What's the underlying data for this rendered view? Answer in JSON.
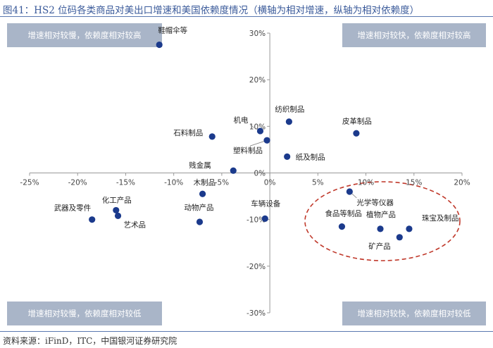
{
  "figure": {
    "title": "图41：HS2 位码各类商品对美出口增速和美国依赖度情况（横轴为相对增速，纵轴为相对依赖度）",
    "source": "资料来源：iFinD，ITC，中国银河证券研究院"
  },
  "colors": {
    "title_blue": "#3a5a9a",
    "point": "#1b3a8c",
    "quadrant_box": "#a9b5c8",
    "ellipse": "#c0392b",
    "axis": "#999999"
  },
  "chart_data": {
    "type": "scatter",
    "xlim": [
      -25,
      20
    ],
    "ylim": [
      -30,
      30
    ],
    "x_ticks": [
      "-25%",
      "-20%",
      "-15%",
      "-10%",
      "-5%",
      "0%",
      "5%",
      "10%",
      "15%",
      "20%"
    ],
    "y_ticks": [
      "30%",
      "20%",
      "10%",
      "0%",
      "-10%",
      "-20%",
      "-30%"
    ],
    "quadrant_labels": {
      "top_left": "增速相对较慢，依赖度相对较高",
      "top_right": "增速相对较快，依赖度相对较高",
      "bottom_left": "增速相对较慢，依赖度相对较低",
      "bottom_right": "增速相对较快，依赖度相对较低"
    },
    "points": [
      {
        "label": "鞋帽伞等",
        "x": -11.5,
        "y": 27.5
      },
      {
        "label": "纺织制品",
        "x": 2.0,
        "y": 11.0
      },
      {
        "label": "皮革制品",
        "x": 9.0,
        "y": 8.5
      },
      {
        "label": "机电",
        "x": -1.0,
        "y": 9.0
      },
      {
        "label": "石料制品",
        "x": -6.0,
        "y": 7.8
      },
      {
        "label": "塑料制品",
        "x": -0.3,
        "y": 7.0
      },
      {
        "label": "纸及制品",
        "x": 1.8,
        "y": 3.5
      },
      {
        "label": "贱金属",
        "x": -3.8,
        "y": 0.5
      },
      {
        "label": "木制品",
        "x": -7.0,
        "y": -4.5
      },
      {
        "label": "光学等仪器",
        "x": 8.3,
        "y": -4.0
      },
      {
        "label": "化工产品",
        "x": -16.0,
        "y": -8.0
      },
      {
        "label": "武器及零件",
        "x": -18.5,
        "y": -10.0
      },
      {
        "label": "艺术品",
        "x": -15.8,
        "y": -9.2
      },
      {
        "label": "动物产品",
        "x": -7.3,
        "y": -10.5
      },
      {
        "label": "车辆设备",
        "x": -0.5,
        "y": -9.8
      },
      {
        "label": "食品等制品",
        "x": 7.5,
        "y": -11.5
      },
      {
        "label": "植物产品",
        "x": 11.5,
        "y": -12.0
      },
      {
        "label": "珠宝及制品",
        "x": 14.5,
        "y": -12.0
      },
      {
        "label": "矿产品",
        "x": 13.5,
        "y": -13.8
      }
    ]
  }
}
